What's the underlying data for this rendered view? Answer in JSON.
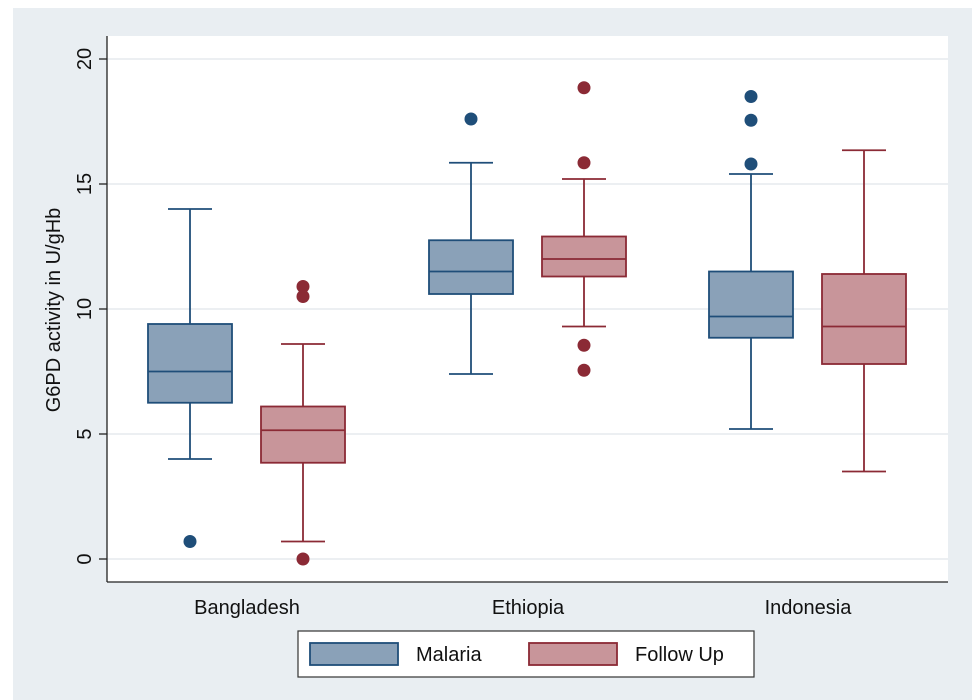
{
  "chart_data": {
    "type": "box",
    "title": "",
    "xlabel": "",
    "ylabel": "G6PD activity in U/gHb",
    "ylim": [
      -1,
      21
    ],
    "yticks": [
      0,
      5,
      10,
      15,
      20
    ],
    "grid": true,
    "legend_position": "bottom",
    "categories": [
      "Bangladesh",
      "Ethiopia",
      "Indonesia"
    ],
    "series": [
      {
        "name": "Malaria",
        "color": "#8aa1b8",
        "stroke": "#1f4e79",
        "boxes": [
          {
            "whisker_low": 4.0,
            "q1": 6.25,
            "median": 7.5,
            "q3": 9.4,
            "whisker_high": 14.0,
            "outliers": [
              0.7
            ]
          },
          {
            "whisker_low": 7.4,
            "q1": 10.6,
            "median": 11.5,
            "q3": 12.75,
            "whisker_high": 15.85,
            "outliers": [
              17.6
            ]
          },
          {
            "whisker_low": 5.2,
            "q1": 8.85,
            "median": 9.7,
            "q3": 11.5,
            "whisker_high": 15.4,
            "outliers": [
              15.8,
              17.55,
              18.5
            ]
          }
        ]
      },
      {
        "name": "Follow Up",
        "color": "#c8959a",
        "stroke": "#8b2a35",
        "boxes": [
          {
            "whisker_low": 0.7,
            "q1": 3.85,
            "median": 5.15,
            "q3": 6.1,
            "whisker_high": 8.6,
            "outliers": [
              0.0,
              10.5,
              10.9
            ]
          },
          {
            "whisker_low": 9.3,
            "q1": 11.3,
            "median": 12.0,
            "q3": 12.9,
            "whisker_high": 15.2,
            "outliers": [
              7.55,
              8.55,
              15.85,
              18.85
            ]
          },
          {
            "whisker_low": 3.5,
            "q1": 7.8,
            "median": 9.3,
            "q3": 11.4,
            "whisker_high": 16.35,
            "outliers": []
          }
        ]
      }
    ]
  }
}
